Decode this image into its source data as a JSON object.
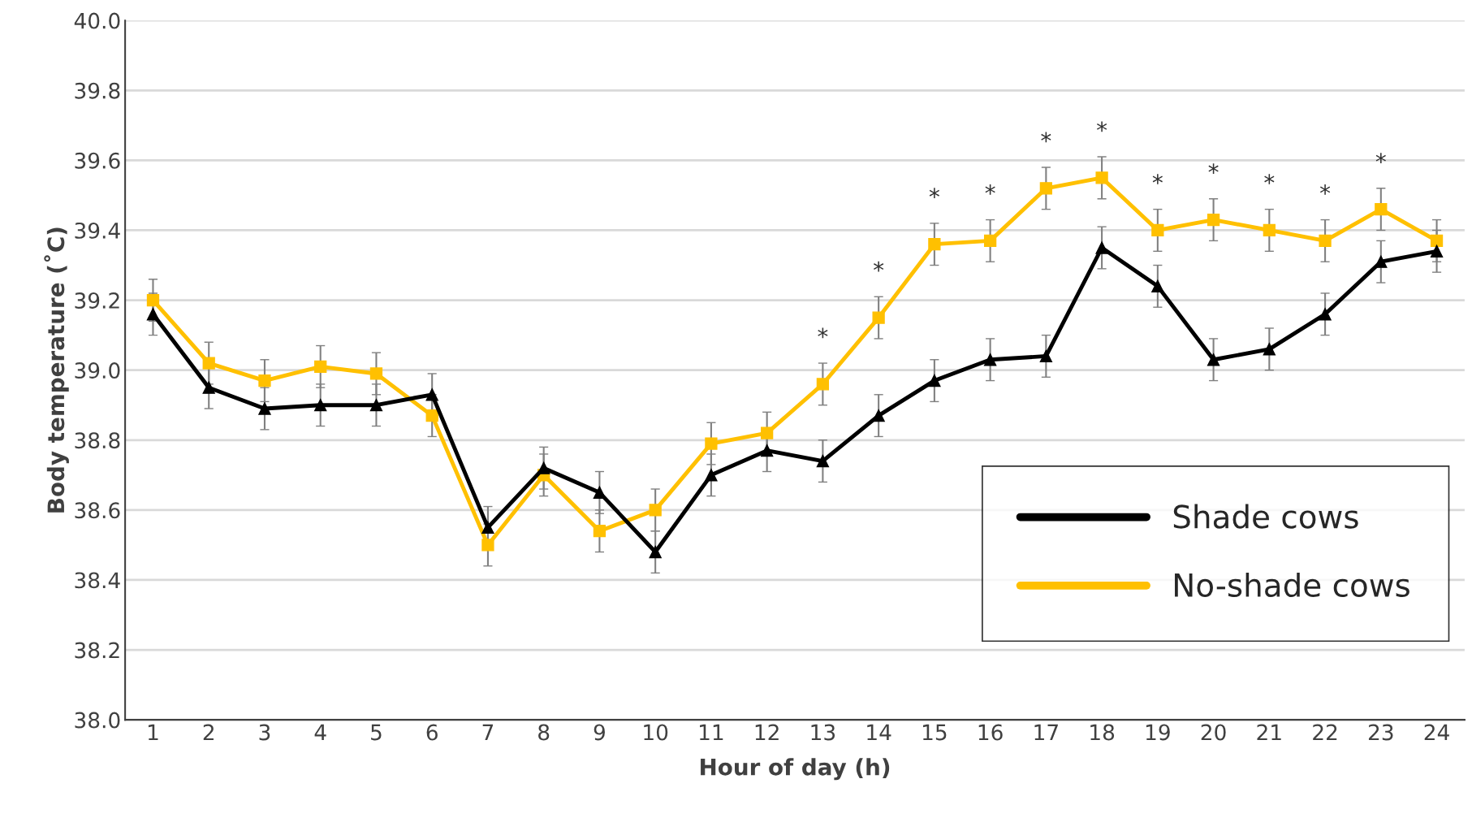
{
  "chart_data": {
    "type": "line",
    "xlabel": "Hour of day (h)",
    "ylabel": "Body temperature (˚C)",
    "categories": [
      "1",
      "2",
      "3",
      "4",
      "5",
      "6",
      "7",
      "8",
      "9",
      "10",
      "11",
      "12",
      "13",
      "14",
      "15",
      "16",
      "17",
      "18",
      "19",
      "20",
      "21",
      "22",
      "23",
      "24"
    ],
    "series": [
      {
        "name": "Shade cows",
        "color": "#000000",
        "marker": "triangle",
        "values": [
          39.16,
          38.95,
          38.89,
          38.9,
          38.9,
          38.93,
          38.55,
          38.72,
          38.65,
          38.48,
          38.7,
          38.77,
          38.74,
          38.87,
          38.97,
          39.03,
          39.04,
          39.35,
          39.24,
          39.03,
          39.06,
          39.16,
          39.31,
          39.34
        ],
        "errors": [
          0.06,
          0.06,
          0.06,
          0.06,
          0.06,
          0.06,
          0.06,
          0.06,
          0.06,
          0.06,
          0.06,
          0.06,
          0.06,
          0.06,
          0.06,
          0.06,
          0.06,
          0.06,
          0.06,
          0.06,
          0.06,
          0.06,
          0.06,
          0.06
        ]
      },
      {
        "name": "No-shade cows",
        "color": "#ffc000",
        "marker": "square",
        "values": [
          39.2,
          39.02,
          38.97,
          39.01,
          38.99,
          38.87,
          38.5,
          38.7,
          38.54,
          38.6,
          38.79,
          38.82,
          38.96,
          39.15,
          39.36,
          39.37,
          39.52,
          39.55,
          39.4,
          39.43,
          39.4,
          39.37,
          39.46,
          39.37
        ],
        "errors": [
          0.06,
          0.06,
          0.06,
          0.06,
          0.06,
          0.06,
          0.06,
          0.06,
          0.06,
          0.06,
          0.06,
          0.06,
          0.06,
          0.06,
          0.06,
          0.06,
          0.06,
          0.06,
          0.06,
          0.06,
          0.06,
          0.06,
          0.06,
          0.06
        ],
        "value_labels": [
          null,
          null,
          null,
          null,
          null,
          null,
          null,
          null,
          null,
          null,
          null,
          null,
          "*",
          "*",
          "*",
          "*",
          "*",
          "*",
          "*",
          "*",
          "*",
          "*",
          "*",
          null
        ]
      }
    ],
    "ylim": [
      38.0,
      40.0
    ],
    "yticks": [
      {
        "value": 38.0,
        "label": "38.0"
      },
      {
        "value": 38.2,
        "label": "38.2"
      },
      {
        "value": 38.4,
        "label": "38.4"
      },
      {
        "value": 38.6,
        "label": "38.6"
      },
      {
        "value": 38.8,
        "label": "38.8"
      },
      {
        "value": 39.0,
        "label": "39.0"
      },
      {
        "value": 39.2,
        "label": "39.2"
      },
      {
        "value": 39.4,
        "label": "39.4"
      },
      {
        "value": 39.6,
        "label": "39.6"
      },
      {
        "value": 39.8,
        "label": "39.8"
      },
      {
        "value": 40.0,
        "label": "40.0"
      }
    ],
    "grid": "y",
    "legend": "lower right",
    "line_style": "solid"
  }
}
